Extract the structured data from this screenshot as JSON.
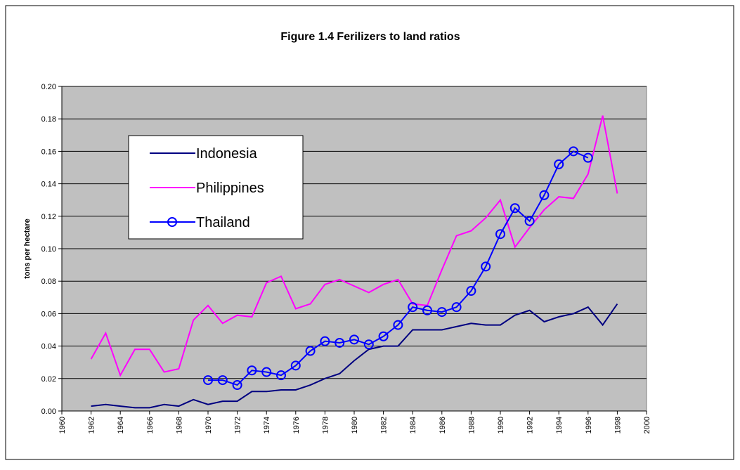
{
  "chart_data": {
    "type": "line",
    "title": "Figure 1.4 Ferilizers to land ratios",
    "y_label": "tons per hectare",
    "xlim": [
      1960,
      2000
    ],
    "xticks": [
      1960,
      1962,
      1964,
      1966,
      1968,
      1970,
      1972,
      1974,
      1976,
      1978,
      1980,
      1982,
      1984,
      1986,
      1988,
      1990,
      1992,
      1994,
      1996,
      1998,
      2000
    ],
    "ylim": [
      0,
      0.2
    ],
    "yticks": [
      {
        "value": 0,
        "label": "0.00"
      },
      {
        "value": 0.02,
        "label": "0.02"
      },
      {
        "value": 0.04,
        "label": "0.04"
      },
      {
        "value": 0.06,
        "label": "0.06"
      },
      {
        "value": 0.08,
        "label": "0.08"
      },
      {
        "value": 0.1,
        "label": "0.10"
      },
      {
        "value": 0.12,
        "label": "0.12"
      },
      {
        "value": 0.14,
        "label": "0.14"
      },
      {
        "value": 0.16,
        "label": "0.16"
      },
      {
        "value": 0.18,
        "label": "0.18"
      },
      {
        "value": 0.2,
        "label": "0.20"
      }
    ],
    "grid": true,
    "legend": "upper-left",
    "series": [
      {
        "name": "Indonesia",
        "color": "#000080",
        "marker": "none",
        "x": [
          1962,
          1963,
          1964,
          1965,
          1966,
          1967,
          1968,
          1969,
          1970,
          1971,
          1972,
          1973,
          1974,
          1975,
          1976,
          1977,
          1978,
          1979,
          1980,
          1981,
          1982,
          1983,
          1984,
          1985,
          1986,
          1987,
          1988,
          1989,
          1990,
          1991,
          1992,
          1993,
          1994,
          1995,
          1996,
          1997,
          1998
        ],
        "values": [
          0.003,
          0.004,
          0.003,
          0.002,
          0.002,
          0.004,
          0.003,
          0.007,
          0.004,
          0.006,
          0.006,
          0.012,
          0.012,
          0.013,
          0.013,
          0.016,
          0.02,
          0.023,
          0.031,
          0.038,
          0.04,
          0.04,
          0.05,
          0.05,
          0.05,
          0.052,
          0.054,
          0.053,
          0.053,
          0.059,
          0.062,
          0.055,
          0.058,
          0.06,
          0.064,
          0.053,
          0.066
        ]
      },
      {
        "name": "Philippines",
        "color": "#ff00ff",
        "marker": "none",
        "x": [
          1962,
          1963,
          1964,
          1965,
          1966,
          1967,
          1968,
          1969,
          1970,
          1971,
          1972,
          1973,
          1974,
          1975,
          1976,
          1977,
          1978,
          1979,
          1980,
          1981,
          1982,
          1983,
          1984,
          1985,
          1986,
          1987,
          1988,
          1989,
          1990,
          1991,
          1992,
          1993,
          1994,
          1995,
          1996,
          1997,
          1998
        ],
        "values": [
          0.032,
          0.048,
          0.022,
          0.038,
          0.038,
          0.024,
          0.026,
          0.056,
          0.065,
          0.054,
          0.059,
          0.058,
          0.079,
          0.083,
          0.063,
          0.066,
          0.078,
          0.081,
          0.077,
          0.073,
          0.078,
          0.081,
          0.066,
          0.065,
          0.087,
          0.108,
          0.111,
          0.119,
          0.13,
          0.101,
          0.113,
          0.124,
          0.132,
          0.131,
          0.146,
          0.182,
          0.134
        ]
      },
      {
        "name": "Thailand",
        "color": "#0000ff",
        "marker": "circle",
        "x": [
          1970,
          1971,
          1972,
          1973,
          1974,
          1975,
          1976,
          1977,
          1978,
          1979,
          1980,
          1981,
          1982,
          1983,
          1984,
          1985,
          1986,
          1987,
          1988,
          1989,
          1990,
          1991,
          1992,
          1993,
          1994,
          1995,
          1996
        ],
        "values": [
          0.019,
          0.019,
          0.016,
          0.025,
          0.024,
          0.022,
          0.028,
          0.037,
          0.043,
          0.042,
          0.044,
          0.041,
          0.046,
          0.053,
          0.064,
          0.062,
          0.061,
          0.064,
          0.074,
          0.089,
          0.109,
          0.125,
          0.117,
          0.133,
          0.152,
          0.16,
          0.156
        ]
      }
    ]
  }
}
